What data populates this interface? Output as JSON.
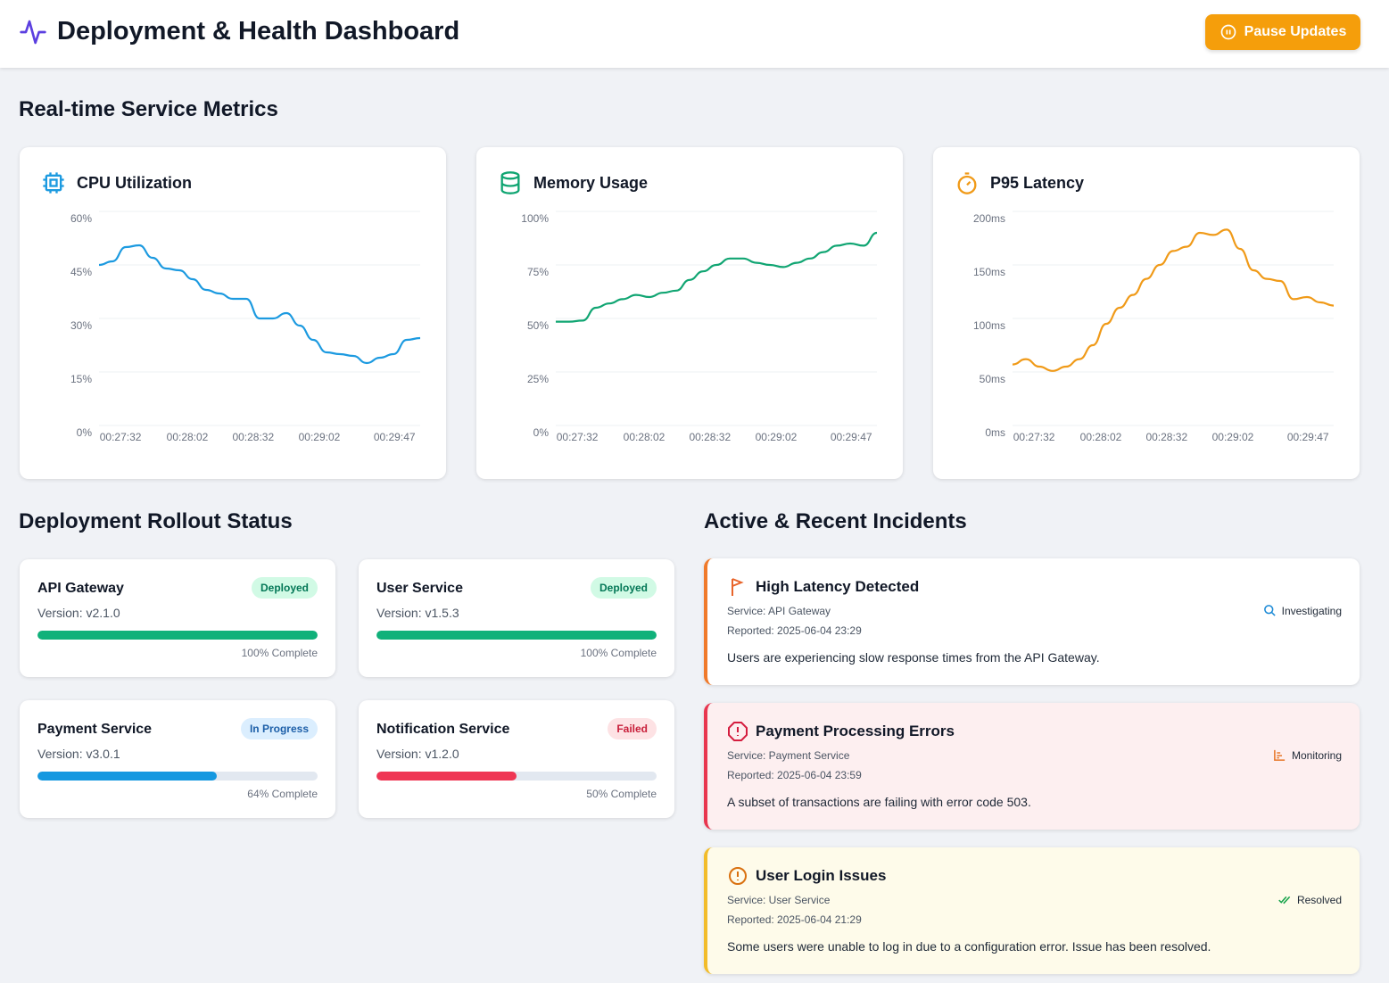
{
  "header": {
    "title": "Deployment & Health Dashboard",
    "pause_label": "Pause Updates",
    "logo_icon": "activity-icon",
    "accent": "#f59e0b"
  },
  "metrics_section": {
    "title": "Real-time Service Metrics"
  },
  "chart_data": [
    {
      "type": "line",
      "title": "CPU Utilization",
      "icon": "cpu-icon",
      "color": "#1c9ae0",
      "ylim": [
        0,
        60
      ],
      "y_ticks": [
        "0%",
        "15%",
        "30%",
        "45%",
        "60%"
      ],
      "y_tick_values": [
        0,
        15,
        30,
        45,
        60
      ],
      "x_ticks": [
        "00:27:32",
        "00:28:02",
        "00:28:32",
        "00:29:02",
        "00:29:47"
      ],
      "grid": true,
      "values": [
        45,
        46,
        50,
        50.5,
        47,
        44,
        43.5,
        41,
        38,
        37,
        35.5,
        35.5,
        30,
        30,
        31.5,
        28,
        24,
        20.5,
        20,
        19.5,
        17.5,
        19,
        20,
        24,
        24.5
      ]
    },
    {
      "type": "line",
      "title": "Memory Usage",
      "icon": "database-icon",
      "color": "#10a572",
      "ylim": [
        0,
        100
      ],
      "y_ticks": [
        "0%",
        "25%",
        "50%",
        "75%",
        "100%"
      ],
      "y_tick_values": [
        0,
        25,
        50,
        75,
        100
      ],
      "x_ticks": [
        "00:27:32",
        "00:28:02",
        "00:28:32",
        "00:29:02",
        "00:29:47"
      ],
      "grid": true,
      "values": [
        48.5,
        48.5,
        49,
        55,
        57,
        59,
        61,
        60,
        62,
        63,
        68,
        72,
        75,
        78,
        78,
        76,
        75,
        74,
        76,
        78,
        81,
        84,
        85,
        84,
        90
      ]
    },
    {
      "type": "line",
      "title": "P95 Latency",
      "icon": "stopwatch-icon",
      "color": "#f09a18",
      "ylim": [
        0,
        200
      ],
      "y_ticks": [
        "0ms",
        "50ms",
        "100ms",
        "150ms",
        "200ms"
      ],
      "y_tick_values": [
        0,
        50,
        100,
        150,
        200
      ],
      "x_ticks": [
        "00:27:32",
        "00:28:02",
        "00:28:32",
        "00:29:02",
        "00:29:47"
      ],
      "grid": true,
      "values": [
        57,
        62,
        55,
        51,
        55,
        62,
        75,
        95,
        110,
        122,
        137,
        150,
        163,
        167,
        180,
        178,
        183,
        165,
        145,
        137,
        135,
        118,
        120,
        115,
        112
      ]
    }
  ],
  "deployments": {
    "title": "Deployment Rollout Status",
    "items": [
      {
        "name": "API Gateway",
        "version": "Version: v2.1.0",
        "status": "Deployed",
        "progress": 100,
        "progress_label": "100% Complete",
        "color": "#10b17a"
      },
      {
        "name": "User Service",
        "version": "Version: v1.5.3",
        "status": "Deployed",
        "progress": 100,
        "progress_label": "100% Complete",
        "color": "#10b17a"
      },
      {
        "name": "Payment Service",
        "version": "Version: v3.0.1",
        "status": "In Progress",
        "progress": 64,
        "progress_label": "64% Complete",
        "color": "#1598e0"
      },
      {
        "name": "Notification Service",
        "version": "Version: v1.2.0",
        "status": "Failed",
        "progress": 50,
        "progress_label": "50% Complete",
        "color": "#ef3654"
      }
    ]
  },
  "incidents": {
    "title": "Active & Recent Incidents",
    "items": [
      {
        "title": "High Latency Detected",
        "service": "Service: API Gateway",
        "reported": "Reported: 2025-06-04 23:29",
        "description": "Users are experiencing slow response times from the API Gateway.",
        "status": "Investigating",
        "icon": "flag-icon",
        "status_icon": "search-icon"
      },
      {
        "title": "Payment Processing Errors",
        "service": "Service: Payment Service",
        "reported": "Reported: 2025-06-04 23:59",
        "description": "A subset of transactions are failing with error code 503.",
        "status": "Monitoring",
        "icon": "alert-octagon-icon",
        "status_icon": "bar-chart-icon"
      },
      {
        "title": "User Login Issues",
        "service": "Service: User Service",
        "reported": "Reported: 2025-06-04 21:29",
        "description": "Some users were unable to log in due to a configuration error. Issue has been resolved.",
        "status": "Resolved",
        "icon": "alert-badge-icon",
        "status_icon": "double-check-icon"
      }
    ]
  }
}
